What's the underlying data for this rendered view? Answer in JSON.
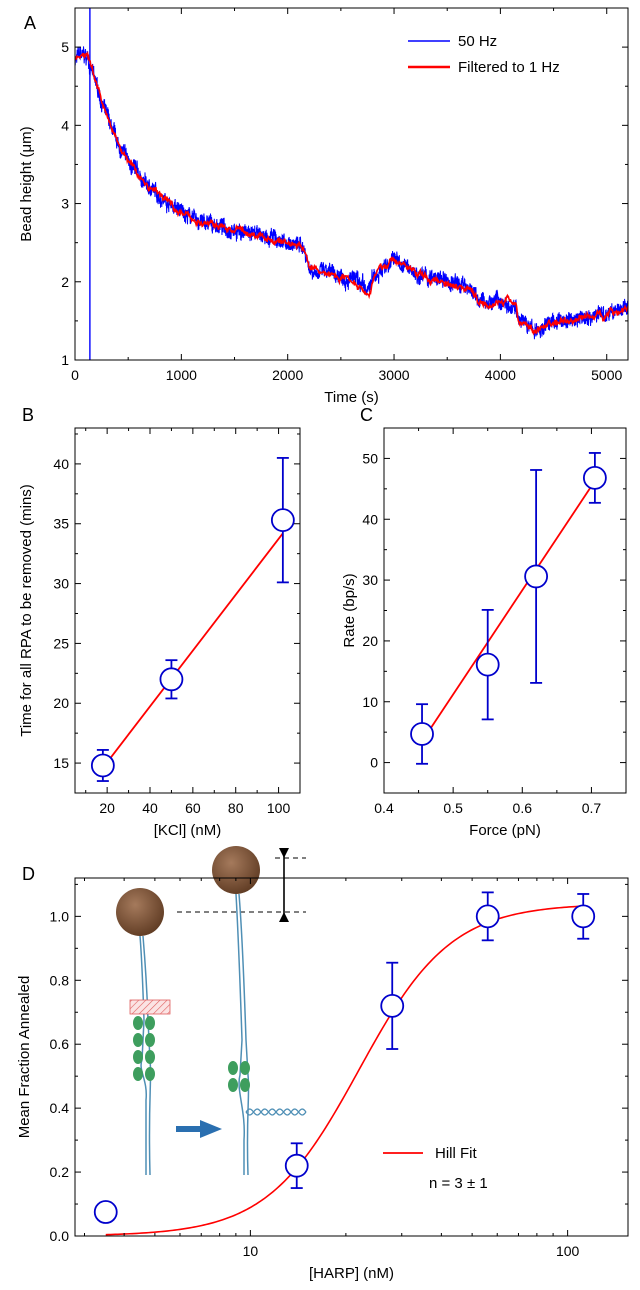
{
  "chart_data": [
    {
      "panel": "A",
      "type": "line",
      "xlabel": "Time (s)",
      "ylabel": "Bead height (μm)",
      "xlim": [
        0,
        5200
      ],
      "ylim": [
        1,
        5.5
      ],
      "xticks": [
        0,
        1000,
        2000,
        3000,
        4000,
        5000
      ],
      "yticks": [
        1,
        2,
        3,
        4,
        5
      ],
      "grid": false,
      "legend_position": "top-right",
      "series": [
        {
          "name": "50 Hz",
          "color": "#0000ff",
          "noise": 0.09,
          "x": [
            0,
            60,
            120,
            180,
            250,
            320,
            400,
            500,
            600,
            700,
            850,
            1000,
            1200,
            1400,
            1600,
            1800,
            2000,
            2150,
            2200,
            2230,
            2400,
            2600,
            2700,
            2750,
            2800,
            2900,
            3000,
            3100,
            3300,
            3500,
            3700,
            3750,
            3800,
            4000,
            4150,
            4170,
            4250,
            4350,
            4450,
            4600,
            4800,
            5000,
            5200
          ],
          "y": [
            4.85,
            4.9,
            4.85,
            4.6,
            4.3,
            4.05,
            3.75,
            3.55,
            3.35,
            3.2,
            3.05,
            2.9,
            2.75,
            2.7,
            2.62,
            2.57,
            2.5,
            2.45,
            2.2,
            2.15,
            2.1,
            2.05,
            1.95,
            1.85,
            2.05,
            2.18,
            2.3,
            2.2,
            2.05,
            2.0,
            1.95,
            1.85,
            1.75,
            1.75,
            1.72,
            1.5,
            1.45,
            1.35,
            1.48,
            1.5,
            1.55,
            1.6,
            1.67
          ],
          "spike": {
            "x": 140,
            "y_range": [
              1,
              5.5
            ]
          }
        },
        {
          "name": "Filtered to 1 Hz",
          "color": "#ff0000",
          "noise": 0.02,
          "x": [
            0,
            60,
            120,
            180,
            250,
            320,
            400,
            500,
            600,
            700,
            850,
            1000,
            1200,
            1400,
            1600,
            1800,
            2000,
            2150,
            2200,
            2230,
            2400,
            2600,
            2700,
            2750,
            2800,
            2900,
            3000,
            3100,
            3300,
            3500,
            3700,
            3750,
            3800,
            4000,
            4150,
            4170,
            4250,
            4350,
            4450,
            4600,
            4800,
            5000,
            5200
          ],
          "y": [
            4.85,
            4.9,
            4.85,
            4.6,
            4.3,
            4.05,
            3.75,
            3.55,
            3.35,
            3.2,
            3.05,
            2.9,
            2.75,
            2.7,
            2.62,
            2.57,
            2.5,
            2.45,
            2.2,
            2.15,
            2.1,
            2.05,
            1.95,
            1.85,
            2.05,
            2.18,
            2.3,
            2.2,
            2.05,
            2.0,
            1.95,
            1.85,
            1.75,
            1.75,
            1.72,
            1.5,
            1.45,
            1.35,
            1.48,
            1.5,
            1.55,
            1.6,
            1.67
          ]
        }
      ]
    },
    {
      "panel": "B",
      "type": "scatter",
      "xlabel": "[KCl] (nM)",
      "ylabel": "Time for all RPA to be removed (mins)",
      "xlim": [
        5,
        110
      ],
      "ylim": [
        12.5,
        43
      ],
      "xticks": [
        20,
        40,
        60,
        80,
        100
      ],
      "yticks": [
        15,
        20,
        25,
        30,
        35,
        40
      ],
      "grid": false,
      "points": {
        "x": [
          18,
          50,
          102
        ],
        "y": [
          14.8,
          22,
          35.3
        ],
        "err": [
          1.3,
          1.6,
          5.2
        ],
        "color": "#0000cc"
      },
      "fit": {
        "x": [
          18,
          102
        ],
        "y": [
          14.6,
          34.2
        ],
        "color": "#ff0000"
      }
    },
    {
      "panel": "C",
      "type": "scatter",
      "xlabel": "Force (pN)",
      "ylabel": "Rate (bp/s)",
      "xlim": [
        0.4,
        0.75
      ],
      "ylim": [
        -5,
        55
      ],
      "xticks": [
        0.4,
        0.5,
        0.6,
        0.7
      ],
      "yticks": [
        0,
        10,
        20,
        30,
        40,
        50
      ],
      "grid": false,
      "points": {
        "x": [
          0.455,
          0.55,
          0.62,
          0.705
        ],
        "y": [
          4.7,
          16.1,
          30.6,
          46.8
        ],
        "err": [
          4.9,
          9.0,
          17.5,
          4.1
        ],
        "color": "#0000cc"
      },
      "fit": {
        "x": [
          0.455,
          0.705
        ],
        "y": [
          3.5,
          46.3
        ],
        "color": "#ff0000"
      }
    },
    {
      "panel": "D",
      "type": "scatter",
      "xlabel": "[HARP] (nM)",
      "ylabel": "Mean Fraction Annealed",
      "xscale": "log",
      "xlim": [
        2.8,
        155
      ],
      "ylim": [
        0,
        1.12
      ],
      "xticks": [
        10,
        100
      ],
      "yticks": [
        0.0,
        0.2,
        0.4,
        0.6,
        0.8,
        1.0
      ],
      "grid": false,
      "points": {
        "x": [
          3.5,
          14,
          28,
          56,
          112
        ],
        "y": [
          0.075,
          0.22,
          0.72,
          1.0,
          1.0
        ],
        "err": [
          0.03,
          0.07,
          0.135,
          0.075,
          0.07
        ],
        "color": "#0000cc"
      },
      "fit": {
        "model": "hill",
        "top": 1.04,
        "k": 22,
        "n": 3,
        "x_range": [
          3.5,
          112
        ],
        "color": "#ff0000"
      },
      "legend": {
        "label": "Hill Fit",
        "annotation": "n = 3 ± 1",
        "position": "bottom-right"
      }
    }
  ]
}
